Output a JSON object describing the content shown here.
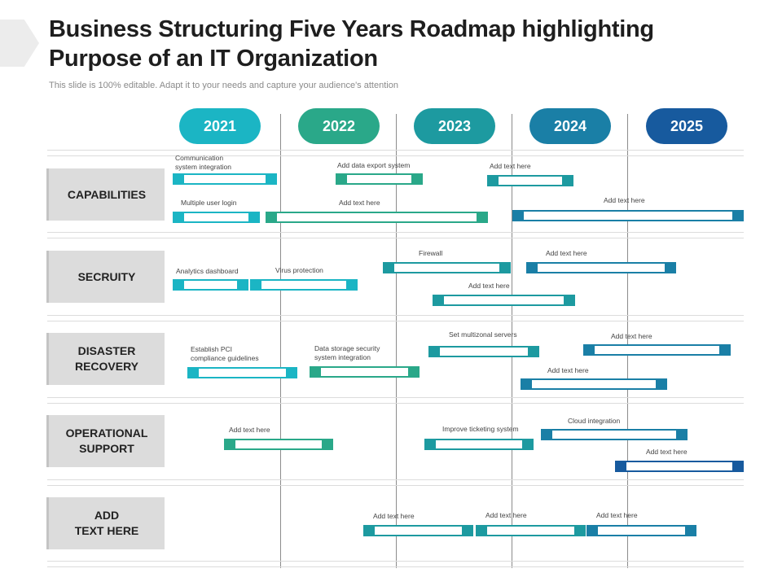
{
  "header": {
    "title": "Business Structuring Five Years Roadmap highlighting Purpose of an IT Organization",
    "subtitle": "This slide is 100% editable. Adapt it to your needs and capture your audience's attention"
  },
  "years": [
    {
      "label": "2021",
      "color": "#1bb5c4"
    },
    {
      "label": "2022",
      "color": "#2aa889"
    },
    {
      "label": "2023",
      "color": "#1d9aa0"
    },
    {
      "label": "2024",
      "color": "#1a7fa6"
    },
    {
      "label": "2025",
      "color": "#175a9e"
    }
  ],
  "rows": [
    {
      "label": "CAPABILITIES"
    },
    {
      "label": "SECRUITY"
    },
    {
      "label": "DISASTER\nRECOVERY"
    },
    {
      "label": "OPERATIONAL\nSUPPORT"
    },
    {
      "label": "ADD\nTEXT HERE"
    }
  ],
  "tasks": [
    {
      "label": "Communication\nsystem integration"
    },
    {
      "label": "Add data export system"
    },
    {
      "label": "Add text here"
    },
    {
      "label": "Multiple user login"
    },
    {
      "label": "Add text here"
    },
    {
      "label": "Add text here"
    },
    {
      "label": "Firewall"
    },
    {
      "label": "Add text here"
    },
    {
      "label": "Analytics dashboard"
    },
    {
      "label": "Virus protection"
    },
    {
      "label": "Add text here"
    },
    {
      "label": "Set multizonal servers"
    },
    {
      "label": "Add text here"
    },
    {
      "label": "Establish PCI\ncompliance guidelines"
    },
    {
      "label": "Data storage security\nsystem integration"
    },
    {
      "label": "Add text here"
    },
    {
      "label": "Add text here"
    },
    {
      "label": "Improve ticketing system"
    },
    {
      "label": "Cloud integration"
    },
    {
      "label": "Add text here"
    },
    {
      "label": "Add text here"
    },
    {
      "label": "Add text here"
    },
    {
      "label": "Add text here"
    }
  ]
}
